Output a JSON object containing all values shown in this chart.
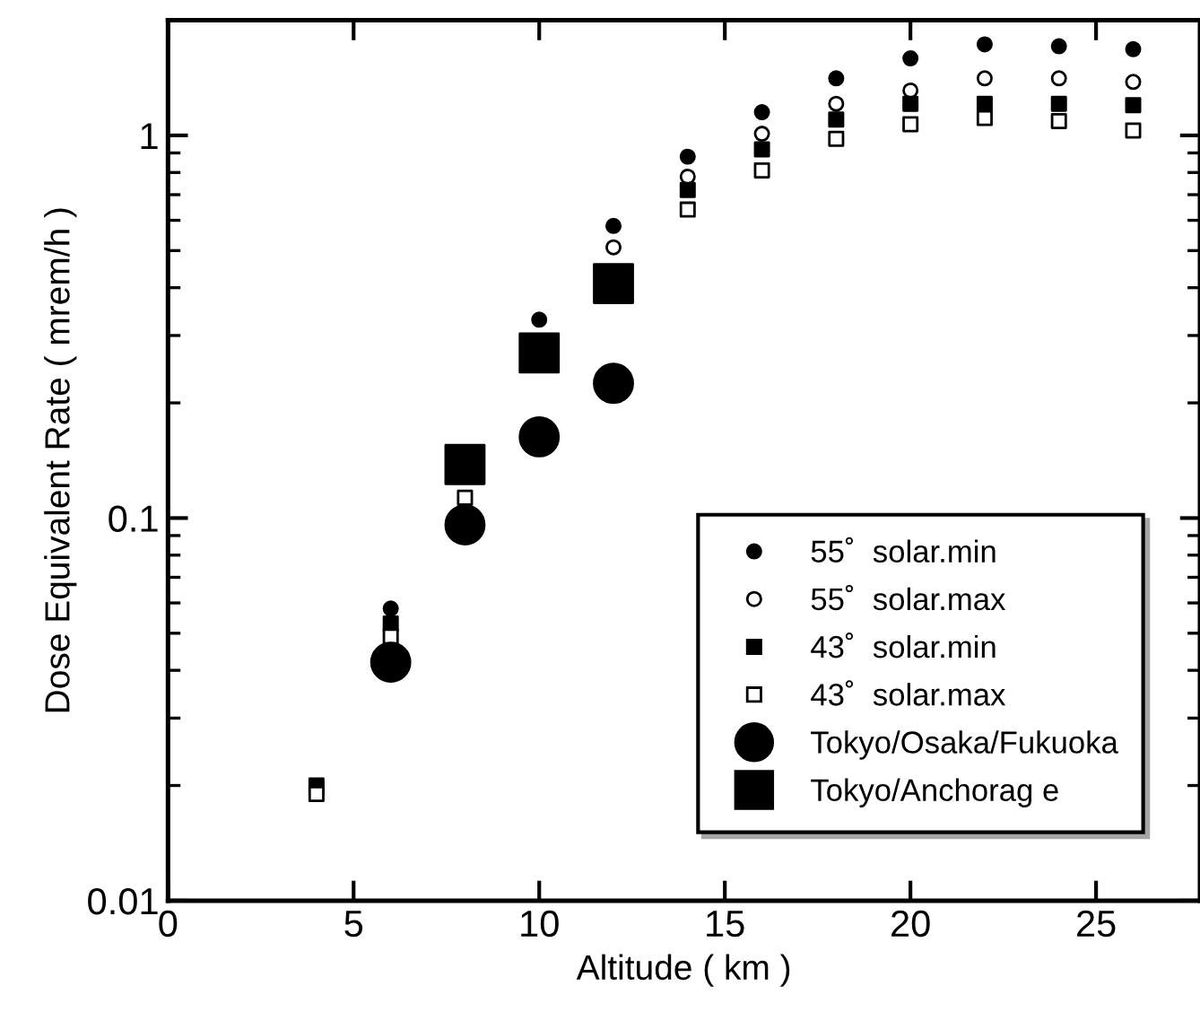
{
  "chart_data": {
    "type": "scatter",
    "xlabel": "Altitude ( km )",
    "ylabel": "Dose Equivalent Rate ( mrem/h )",
    "log": "y",
    "xlim": [
      0,
      27.8
    ],
    "xticks": [
      0,
      5,
      10,
      15,
      20,
      25
    ],
    "ylim": [
      0.01,
      2
    ],
    "yticks": [
      0.01,
      0.1,
      1
    ],
    "grid": false,
    "legend": "bottom right",
    "series": [
      {
        "name": "55˚  solar.min",
        "color": "#000000",
        "marker": "circle",
        "x": [
          6,
          10,
          12,
          14,
          16,
          18,
          20,
          22,
          24,
          26
        ],
        "values": [
          0.058,
          0.33,
          0.58,
          0.88,
          1.15,
          1.41,
          1.59,
          1.73,
          1.71,
          1.68
        ]
      },
      {
        "name": "55˚  solar.max",
        "color": "#ffffff",
        "marker": "circle",
        "x": [
          12,
          14,
          16,
          18,
          20,
          22,
          24,
          26
        ],
        "values": [
          0.51,
          0.78,
          1.01,
          1.21,
          1.31,
          1.41,
          1.41,
          1.38
        ]
      },
      {
        "name": "43˚  solar.min",
        "color": "#000000",
        "marker": "square",
        "x": [
          4,
          6,
          14,
          16,
          18,
          20,
          22,
          24,
          26
        ],
        "values": [
          0.02,
          0.053,
          0.72,
          0.92,
          1.1,
          1.21,
          1.21,
          1.21,
          1.2
        ]
      },
      {
        "name": "43˚  solar.max",
        "color": "#ffffff",
        "marker": "square",
        "x": [
          4,
          6,
          8,
          14,
          16,
          18,
          20,
          22,
          24,
          26
        ],
        "values": [
          0.019,
          0.049,
          0.113,
          0.64,
          0.81,
          0.98,
          1.07,
          1.11,
          1.09,
          1.03
        ]
      },
      {
        "name": "Tokyo/Osaka/Fukuoka",
        "color": "#000000",
        "marker": "circle",
        "x": [
          6,
          8,
          10,
          12
        ],
        "values": [
          0.042,
          0.096,
          0.163,
          0.225
        ]
      },
      {
        "name": "Tokyo/Anchorag e",
        "color": "#000000",
        "marker": "square",
        "x": [
          8,
          10,
          12
        ],
        "values": [
          0.138,
          0.27,
          0.41
        ]
      }
    ]
  }
}
